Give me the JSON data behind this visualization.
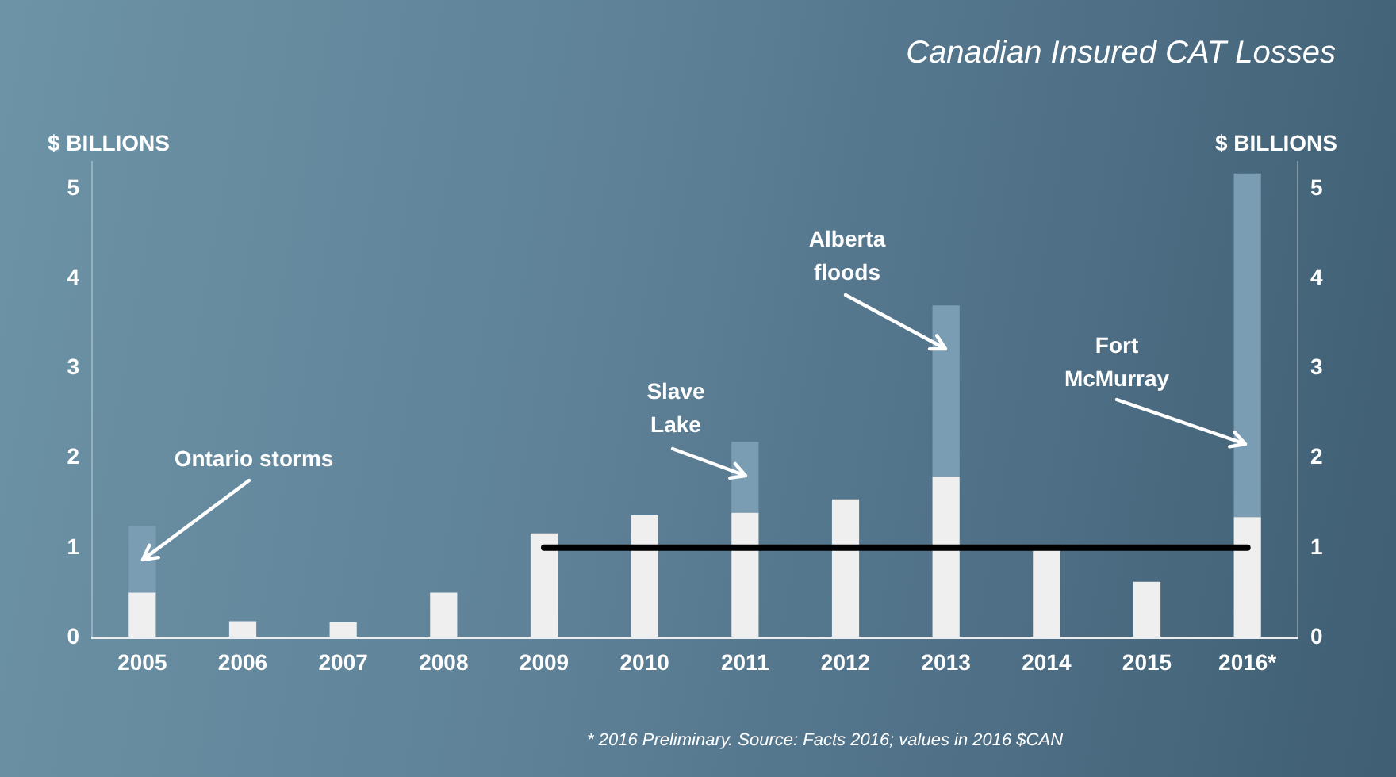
{
  "chart_data": {
    "type": "bar",
    "title": "Canadian Insured CAT Losses",
    "ylabel": "$ BILLIONS",
    "y2label": "$ BILLIONS",
    "categories": [
      "2005",
      "2006",
      "2007",
      "2008",
      "2009",
      "2010",
      "2011",
      "2012",
      "2013",
      "2014",
      "2015",
      "2016*"
    ],
    "stacked": true,
    "series": [
      {
        "color": "#efefef",
        "values": [
          0.5,
          0.18,
          0.17,
          0.5,
          1.16,
          1.36,
          1.39,
          1.54,
          1.79,
          1.0,
          0.62,
          1.34
        ]
      },
      {
        "color": "#7b9db3",
        "values": [
          0.74,
          null,
          null,
          null,
          null,
          null,
          0.79,
          null,
          1.91,
          null,
          null,
          3.83
        ]
      },
      {
        "type": "line",
        "color": "#000000",
        "values": [
          null,
          null,
          null,
          null,
          1,
          1,
          1,
          1,
          1,
          1,
          1,
          1
        ]
      }
    ],
    "ylim": [
      0,
      5.3
    ],
    "yticks": [
      0,
      1,
      2,
      3,
      4,
      5
    ],
    "y2lim": [
      0,
      5.3
    ],
    "y2ticks": [
      0,
      1,
      2,
      3,
      4,
      5
    ],
    "grid": false,
    "legend": false,
    "marker": "none",
    "annotations": [
      "Ontario storms",
      "Slave Lake",
      "Alberta floods",
      "Fort McMurray",
      "* 2016 Preliminary. Source: Facts 2016; values in 2016 $CAN"
    ]
  }
}
